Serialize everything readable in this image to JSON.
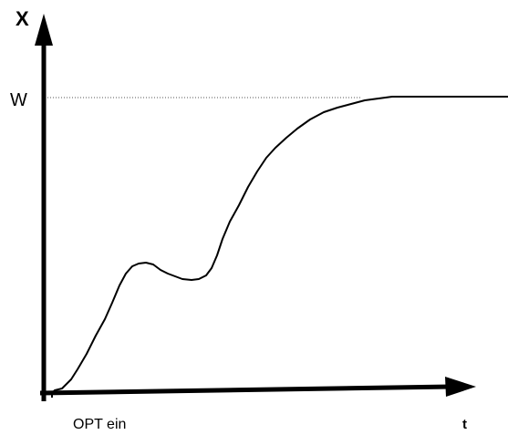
{
  "diagram": {
    "y_axis_label": "X",
    "x_axis_label": "t",
    "setpoint_label": "W",
    "event_label": "OPT ein",
    "colors": {
      "axes": "#000000",
      "curve": "#000000",
      "reference_line": "#555555"
    }
  }
}
